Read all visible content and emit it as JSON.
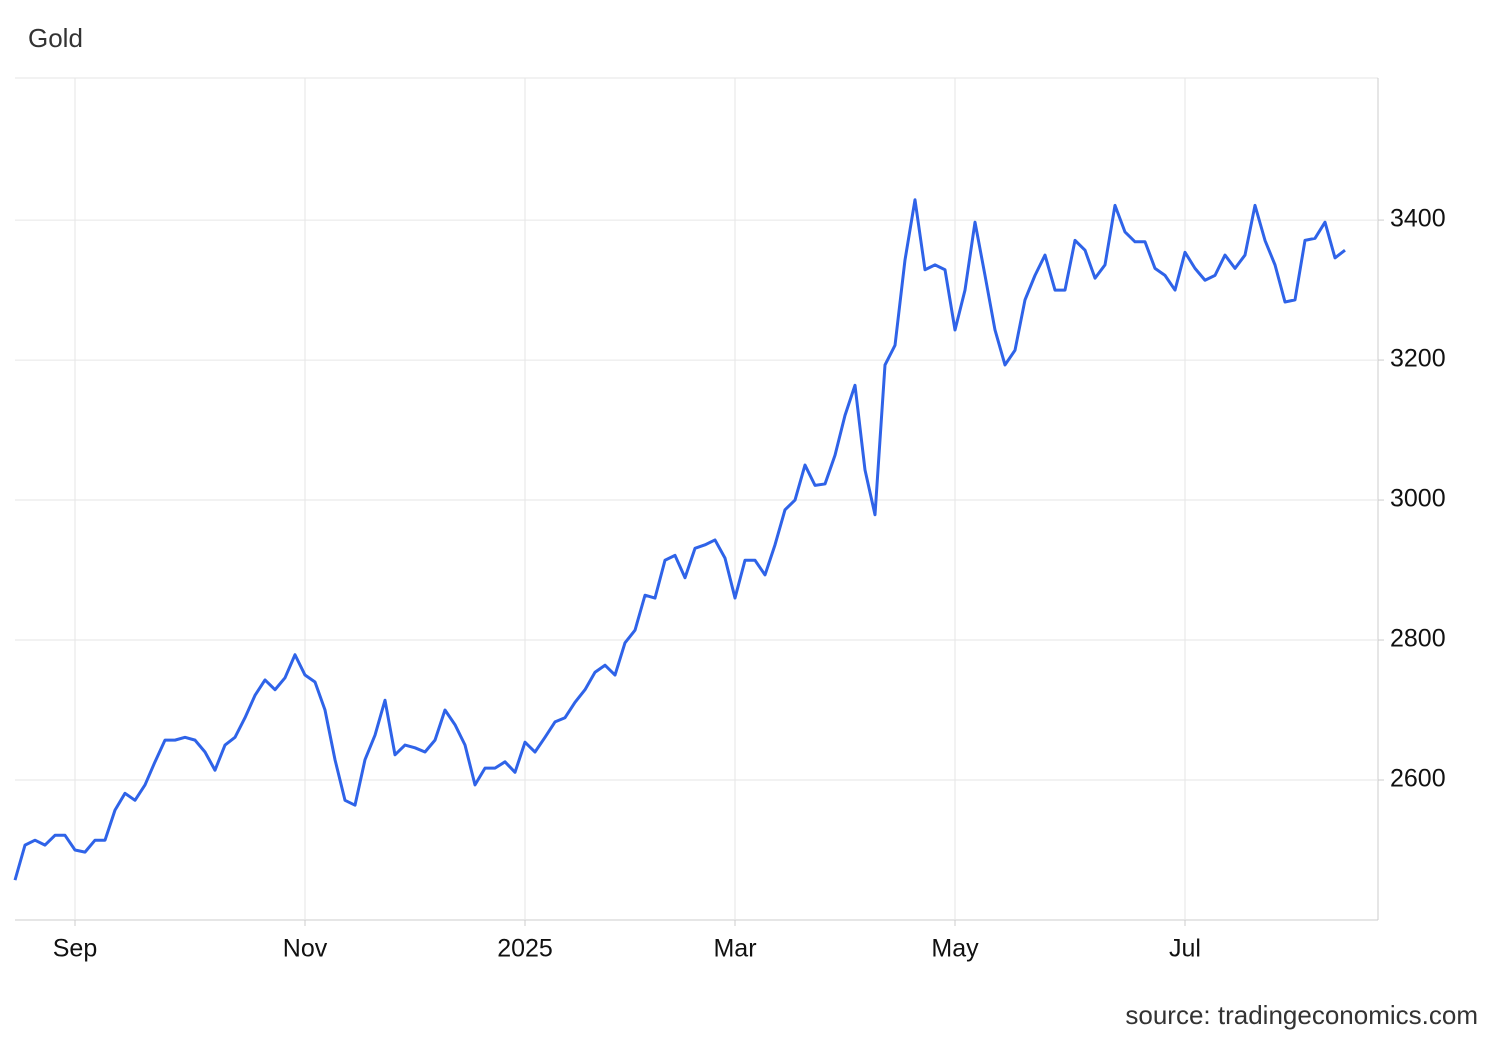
{
  "chart_data": {
    "type": "line",
    "title": "Gold",
    "source": "source: tradingeconomics.com",
    "categories": [
      null,
      null,
      null,
      null,
      null,
      null,
      "Sep",
      null,
      null,
      null,
      null,
      null,
      null,
      null,
      null,
      null,
      null,
      null,
      null,
      null,
      null,
      null,
      null,
      null,
      null,
      null,
      null,
      null,
      null,
      "Nov",
      null,
      null,
      null,
      null,
      null,
      null,
      null,
      null,
      null,
      null,
      null,
      null,
      null,
      null,
      null,
      null,
      null,
      null,
      null,
      null,
      null,
      "2025",
      null,
      null,
      null,
      null,
      null,
      null,
      null,
      null,
      null,
      null,
      null,
      null,
      null,
      null,
      null,
      null,
      null,
      null,
      null,
      null,
      "Mar",
      null,
      null,
      null,
      null,
      null,
      null,
      null,
      null,
      null,
      null,
      null,
      null,
      null,
      null,
      null,
      null,
      null,
      null,
      null,
      null,
      null,
      "May",
      null,
      null,
      null,
      null,
      null,
      null,
      null,
      null,
      null,
      null,
      null,
      null,
      null,
      null,
      null,
      null,
      null,
      null,
      null,
      null,
      null,
      null,
      "Jul",
      null,
      null,
      null,
      null,
      null,
      null,
      null,
      null,
      null,
      null,
      null,
      null,
      null,
      null,
      null,
      null
    ],
    "values": [
      2457,
      2507,
      2514,
      2507,
      2521,
      2521,
      2500,
      2497,
      2514,
      2514,
      2557,
      2581,
      2571,
      2593,
      2626,
      2657,
      2657,
      2661,
      2657,
      2640,
      2614,
      2650,
      2661,
      2689,
      2721,
      2743,
      2729,
      2746,
      2779,
      2750,
      2740,
      2700,
      2629,
      2571,
      2564,
      2629,
      2664,
      2714,
      2636,
      2650,
      2646,
      2640,
      2657,
      2700,
      2679,
      2650,
      2593,
      2617,
      2617,
      2626,
      2611,
      2654,
      2640,
      2661,
      2683,
      2689,
      2711,
      2729,
      2754,
      2764,
      2750,
      2796,
      2814,
      2864,
      2860,
      2914,
      2921,
      2889,
      2931,
      2936,
      2943,
      2917,
      2860,
      2914,
      2914,
      2893,
      2936,
      2986,
      3000,
      3050,
      3021,
      3023,
      3064,
      3121,
      3164,
      3043,
      2979,
      3193,
      3221,
      3343,
      3429,
      3329,
      3336,
      3329,
      3243,
      3300,
      3397,
      3321,
      3243,
      3193,
      3214,
      3286,
      3321,
      3350,
      3300,
      3300,
      3371,
      3357,
      3317,
      3336,
      3421,
      3383,
      3369,
      3369,
      3331,
      3321,
      3300,
      3354,
      3331,
      3314,
      3321,
      3350,
      3331,
      3350,
      3421,
      3371,
      3336,
      3283,
      3286,
      3371,
      3374,
      3397,
      3346,
      3357
    ],
    "color": "#2f63e8",
    "ylim": [
      2400,
      3603
    ],
    "yticks": [
      2600,
      2800,
      3000,
      3200,
      3400
    ],
    "grid": true
  }
}
